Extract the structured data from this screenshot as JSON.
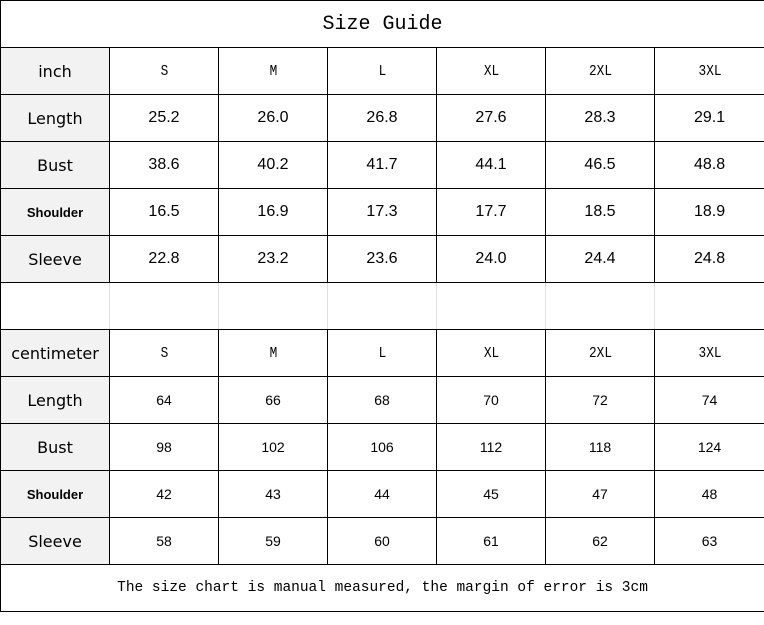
{
  "title": "Size Guide",
  "sizes": [
    "S",
    "M",
    "L",
    "XL",
    "2XL",
    "3XL"
  ],
  "inch": {
    "unit_label": "inch",
    "rows": [
      {
        "label": "Length",
        "bold": false,
        "values": [
          "25.2",
          "26.0",
          "26.8",
          "27.6",
          "28.3",
          "29.1"
        ]
      },
      {
        "label": "Bust",
        "bold": false,
        "values": [
          "38.6",
          "40.2",
          "41.7",
          "44.1",
          "46.5",
          "48.8"
        ]
      },
      {
        "label": "Shoulder",
        "bold": true,
        "values": [
          "16.5",
          "16.9",
          "17.3",
          "17.7",
          "18.5",
          "18.9"
        ]
      },
      {
        "label": "Sleeve",
        "bold": false,
        "values": [
          "22.8",
          "23.2",
          "23.6",
          "24.0",
          "24.4",
          "24.8"
        ]
      }
    ]
  },
  "centimeter": {
    "unit_label": "centimeter",
    "rows": [
      {
        "label": "Length",
        "bold": false,
        "values": [
          "64",
          "66",
          "68",
          "70",
          "72",
          "74"
        ]
      },
      {
        "label": "Bust",
        "bold": false,
        "values": [
          "98",
          "102",
          "106",
          "112",
          "118",
          "124"
        ]
      },
      {
        "label": "Shoulder",
        "bold": true,
        "values": [
          "42",
          "43",
          "44",
          "45",
          "47",
          "48"
        ]
      },
      {
        "label": "Sleeve",
        "bold": false,
        "values": [
          "58",
          "59",
          "60",
          "61",
          "62",
          "63"
        ]
      }
    ]
  },
  "footer": "The size chart is manual measured, the margin of error is 3cm"
}
